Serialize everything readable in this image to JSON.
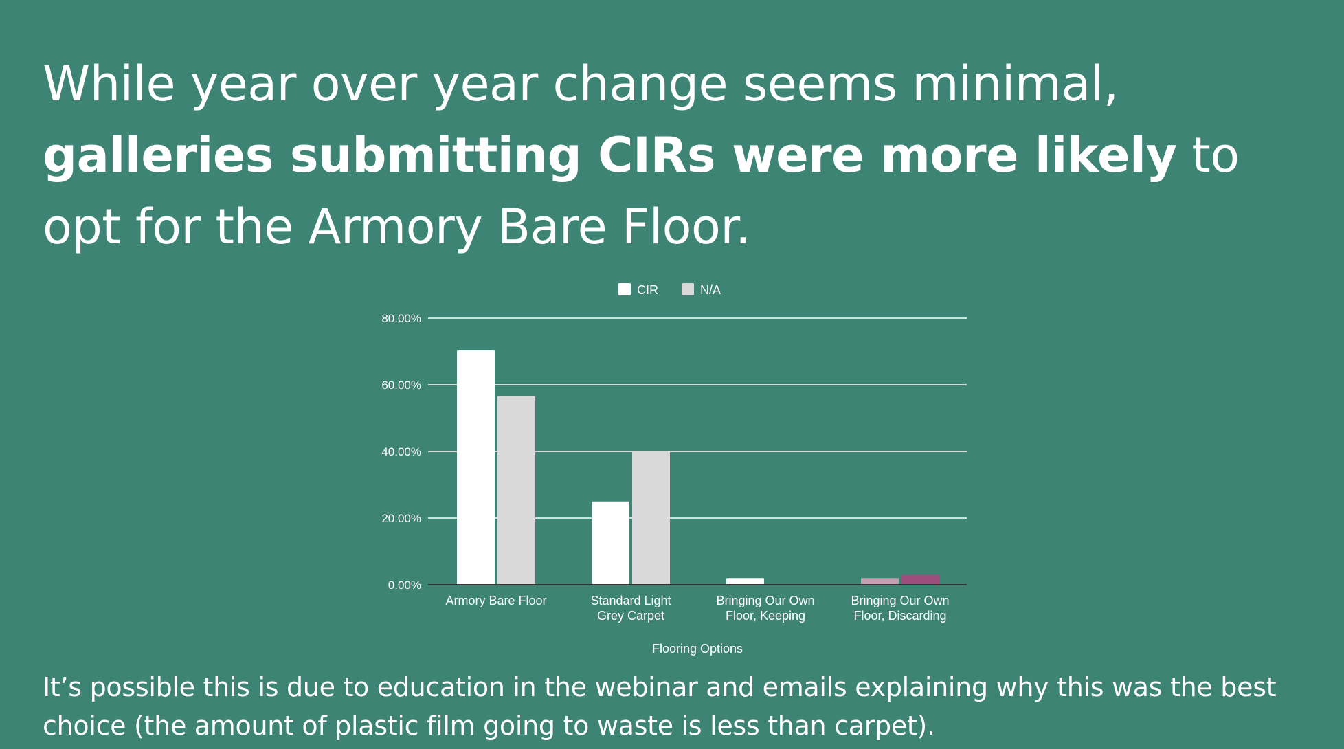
{
  "headline": {
    "part1": "While year over year change seems minimal, ",
    "strong": "galleries submitting CIRs were more likely",
    "part2": " to opt for the Armory Bare Floor."
  },
  "caption": "It’s possible this is due to education in the webinar and emails explaining why this was the best choice (the amount of plastic film going to waste is less than carpet).",
  "colors": {
    "background": "#3e8474",
    "cir": "#ffffff",
    "na": "#d9d9d9",
    "discard_cir": "#c4a1b5",
    "discard_na": "#9c4f7c",
    "gridline": "#ffffff",
    "baseline": "#333333"
  },
  "chart_data": {
    "type": "bar",
    "title": "",
    "xlabel": "Flooring Options",
    "ylabel": "",
    "ylim": [
      0,
      80
    ],
    "yticks": [
      "0.00%",
      "20.00%",
      "40.00%",
      "60.00%",
      "80.00%"
    ],
    "legend_position": "top",
    "categories": [
      [
        "Armory Bare Floor"
      ],
      [
        "Standard Light",
        "Grey Carpet"
      ],
      [
        "Bringing Our Own",
        "Floor, Keeping"
      ],
      [
        "Bringing Our Own",
        "Floor, Discarding"
      ]
    ],
    "series": [
      {
        "name": "CIR",
        "values": [
          70.3,
          25,
          2,
          2
        ]
      },
      {
        "name": "N/A",
        "values": [
          56.6,
          40,
          0,
          3
        ]
      }
    ]
  }
}
